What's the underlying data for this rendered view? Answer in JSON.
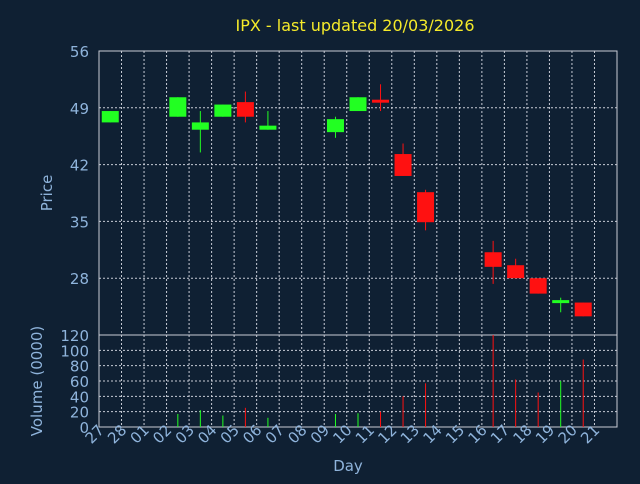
{
  "chart_data": [
    {
      "type": "candlestick",
      "title": "IPX - last updated 20/03/2026",
      "ylabel": "Price",
      "ylim": [
        21,
        56
      ],
      "yticks": [
        28,
        35,
        42,
        49,
        56
      ],
      "grid": true,
      "colors": {
        "up": "#22ff22",
        "down": "#ff1111",
        "background": "#0f2033",
        "grid": "#c8ccd6",
        "text": "#8fb4dc",
        "title": "#f5ea2a"
      },
      "categories": [
        "27",
        "28",
        "01",
        "02",
        "03",
        "04",
        "05",
        "06",
        "07",
        "08",
        "09",
        "10",
        "11",
        "12",
        "13",
        "14",
        "15",
        "16",
        "17",
        "18",
        "19",
        "20",
        "21"
      ],
      "candles": [
        {
          "x": "27",
          "open": 47.2,
          "high": 48.6,
          "low": 47.2,
          "close": 48.6
        },
        {
          "x": "02",
          "open": 47.9,
          "high": 50.3,
          "low": 47.9,
          "close": 50.3
        },
        {
          "x": "03",
          "open": 46.3,
          "high": 48.6,
          "low": 43.5,
          "close": 47.2
        },
        {
          "x": "04",
          "open": 47.9,
          "high": 49.4,
          "low": 47.9,
          "close": 49.4
        },
        {
          "x": "05",
          "open": 49.7,
          "high": 51.0,
          "low": 47.2,
          "close": 47.9
        },
        {
          "x": "06",
          "open": 46.3,
          "high": 48.6,
          "low": 46.3,
          "close": 46.8
        },
        {
          "x": "09",
          "open": 46.0,
          "high": 47.9,
          "low": 45.3,
          "close": 47.6
        },
        {
          "x": "10",
          "open": 48.6,
          "high": 50.3,
          "low": 48.6,
          "close": 50.3
        },
        {
          "x": "11",
          "open": 50.0,
          "high": 51.9,
          "low": 48.6,
          "close": 49.7
        },
        {
          "x": "12",
          "open": 43.3,
          "high": 44.6,
          "low": 40.6,
          "close": 40.6
        },
        {
          "x": "13",
          "open": 38.6,
          "high": 38.9,
          "low": 33.9,
          "close": 34.9
        },
        {
          "x": "16",
          "open": 31.2,
          "high": 32.6,
          "low": 27.3,
          "close": 29.4
        },
        {
          "x": "17",
          "open": 29.6,
          "high": 30.4,
          "low": 28.0,
          "close": 28.0
        },
        {
          "x": "18",
          "open": 28.0,
          "high": 28.0,
          "low": 26.1,
          "close": 26.1
        },
        {
          "x": "19",
          "open": 25.0,
          "high": 25.6,
          "low": 23.8,
          "close": 25.3
        },
        {
          "x": "20",
          "open": 25.0,
          "high": 25.0,
          "low": 23.3,
          "close": 23.3
        }
      ]
    },
    {
      "type": "bar",
      "xlabel": "Day",
      "ylabel": "Volume (0000)",
      "ylim": [
        0,
        120
      ],
      "yticks": [
        0,
        20,
        40,
        60,
        80,
        100,
        120
      ],
      "grid": true,
      "categories": [
        "27",
        "28",
        "01",
        "02",
        "03",
        "04",
        "05",
        "06",
        "07",
        "08",
        "09",
        "10",
        "11",
        "12",
        "13",
        "14",
        "15",
        "16",
        "17",
        "18",
        "19",
        "20",
        "21"
      ],
      "volumes": [
        {
          "x": "02",
          "value": 17,
          "direction": "up"
        },
        {
          "x": "03",
          "value": 22,
          "direction": "up"
        },
        {
          "x": "04",
          "value": 15,
          "direction": "up"
        },
        {
          "x": "05",
          "value": 25,
          "direction": "down"
        },
        {
          "x": "06",
          "value": 12,
          "direction": "up"
        },
        {
          "x": "09",
          "value": 17,
          "direction": "up"
        },
        {
          "x": "10",
          "value": 18,
          "direction": "up"
        },
        {
          "x": "11",
          "value": 20,
          "direction": "down"
        },
        {
          "x": "12",
          "value": 40,
          "direction": "down"
        },
        {
          "x": "13",
          "value": 57,
          "direction": "down"
        },
        {
          "x": "16",
          "value": 120,
          "direction": "down"
        },
        {
          "x": "17",
          "value": 62,
          "direction": "down"
        },
        {
          "x": "18",
          "value": 45,
          "direction": "down"
        },
        {
          "x": "19",
          "value": 60,
          "direction": "up"
        },
        {
          "x": "20",
          "value": 88,
          "direction": "down"
        }
      ]
    }
  ]
}
